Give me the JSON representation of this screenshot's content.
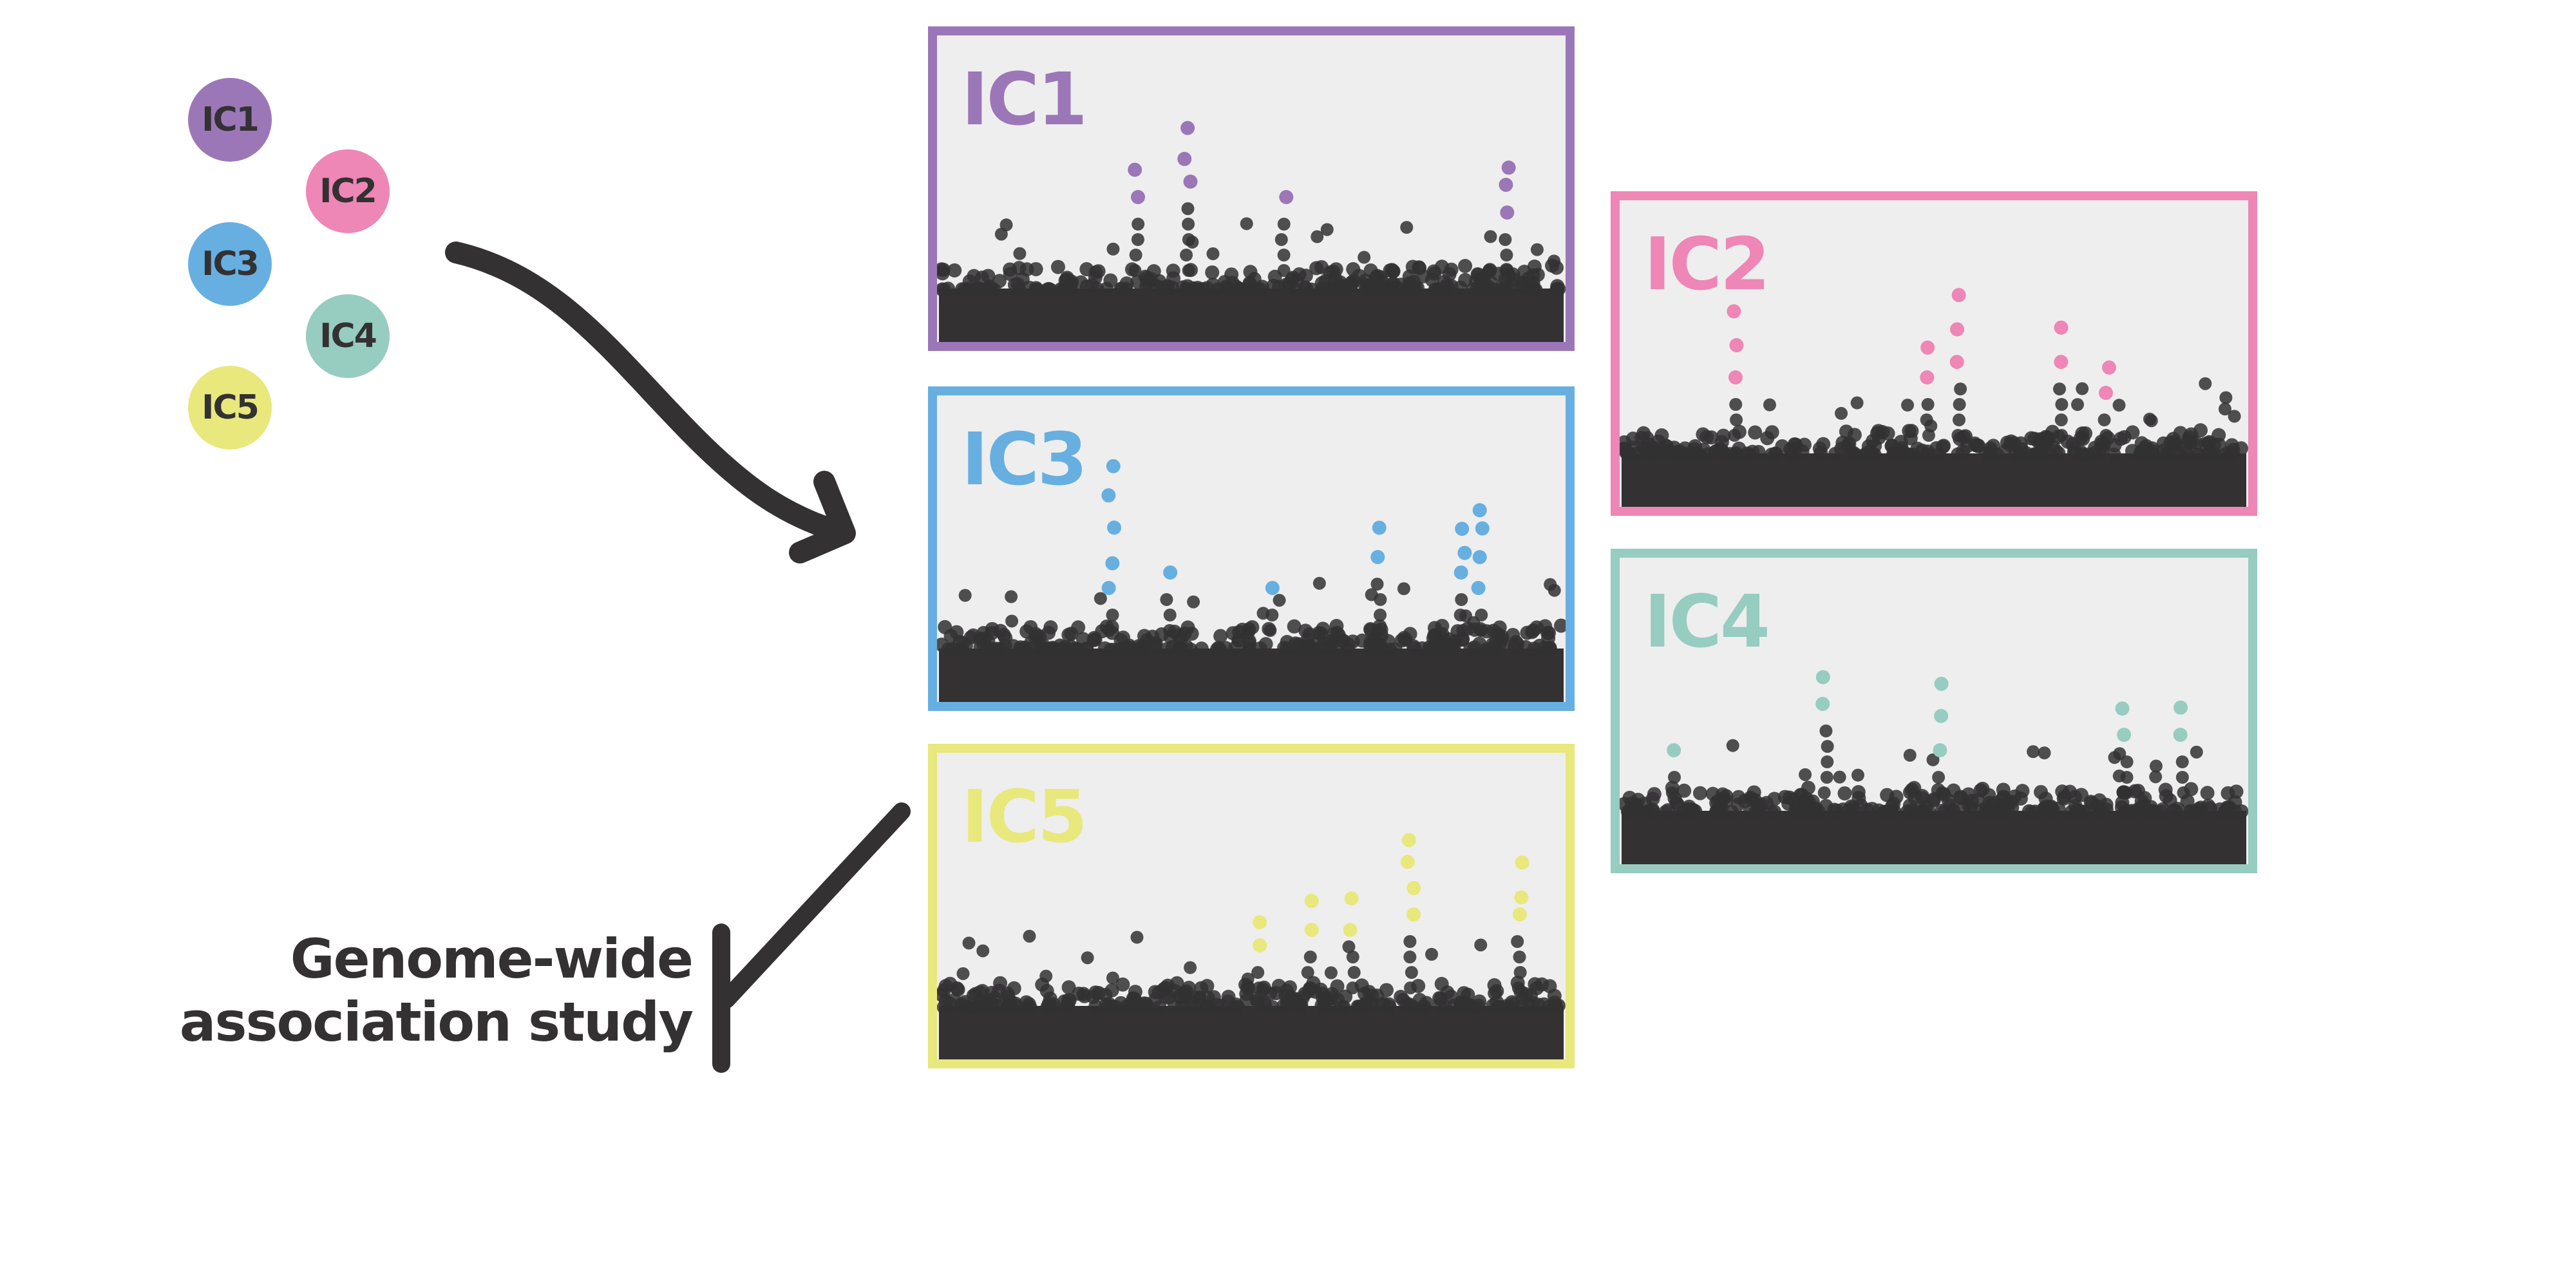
{
  "legend": [
    {
      "label": "IC1",
      "color": "#9b77b8"
    },
    {
      "label": "IC2",
      "color": "#ee86b6"
    },
    {
      "label": "IC3",
      "color": "#67afe1"
    },
    {
      "label": "IC4",
      "color": "#97ccc0"
    },
    {
      "label": "IC5",
      "color": "#e8e87c"
    }
  ],
  "panels": [
    {
      "id": "ic1",
      "title": "IC1",
      "color": "#9b77b8"
    },
    {
      "id": "ic2",
      "title": "IC2",
      "color": "#ee86b6"
    },
    {
      "id": "ic3",
      "title": "IC3",
      "color": "#67afe1"
    },
    {
      "id": "ic4",
      "title": "IC4",
      "color": "#97ccc0"
    },
    {
      "id": "ic5",
      "title": "IC5",
      "color": "#e8e87c"
    }
  ],
  "gwas": {
    "line1": "Genome-wide",
    "line2": "association study"
  },
  "colors": {
    "dark": "#333132",
    "panel_bg": "#eeeeee"
  }
}
